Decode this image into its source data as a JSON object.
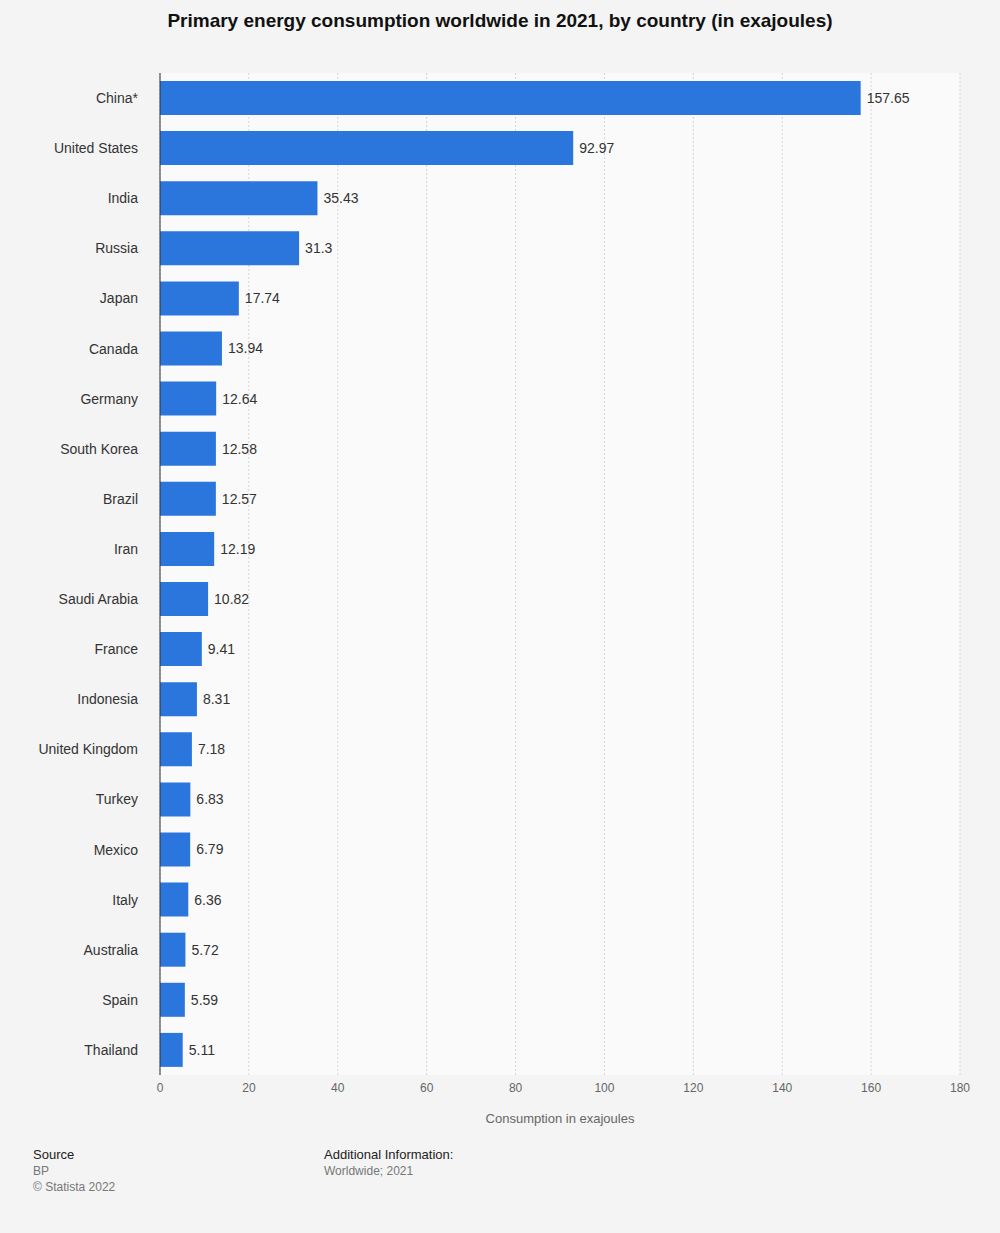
{
  "chart_data": {
    "type": "bar",
    "title": "Primary energy consumption worldwide in 2021, by country (in exajoules)",
    "orientation": "horizontal",
    "categories": [
      "China*",
      "United States",
      "India",
      "Russia",
      "Japan",
      "Canada",
      "Germany",
      "South Korea",
      "Brazil",
      "Iran",
      "Saudi Arabia",
      "France",
      "Indonesia",
      "United Kingdom",
      "Turkey",
      "Mexico",
      "Italy",
      "Australia",
      "Spain",
      "Thailand"
    ],
    "values": [
      157.65,
      92.97,
      35.43,
      31.3,
      17.74,
      13.94,
      12.64,
      12.58,
      12.57,
      12.19,
      10.82,
      9.41,
      8.31,
      7.18,
      6.83,
      6.79,
      6.36,
      5.72,
      5.59,
      5.11
    ],
    "color": "#2a76dd",
    "x_label": "Consumption in exajoules",
    "xlim": [
      0,
      180
    ],
    "xticks": [
      0,
      20,
      40,
      60,
      80,
      100,
      120,
      140,
      160,
      180
    ],
    "grid": true,
    "data_labels": true
  },
  "footer": {
    "source_label": "Source",
    "source": "BP",
    "copyright": "© Statista 2022",
    "info_label": "Additional Information:",
    "info": "Worldwide; 2021"
  }
}
